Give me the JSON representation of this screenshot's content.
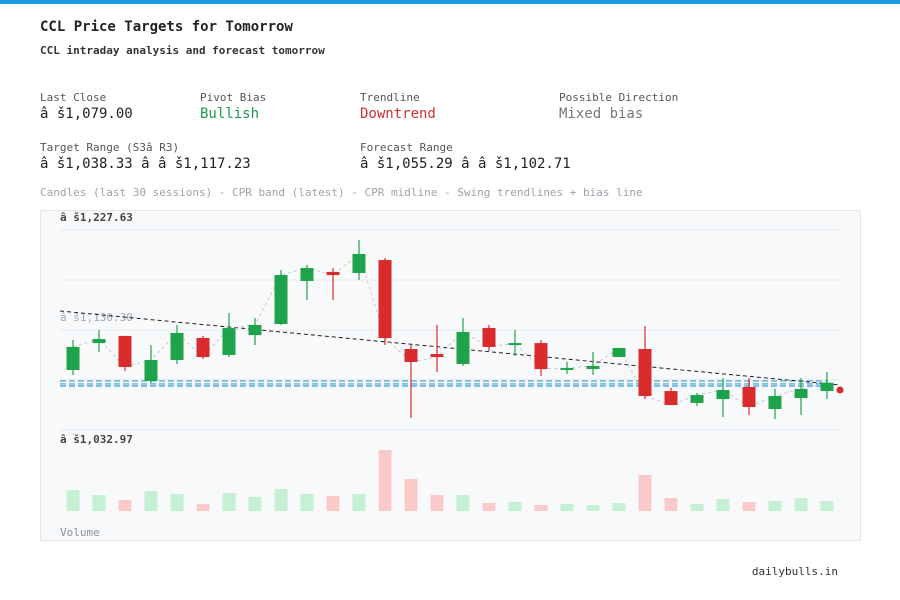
{
  "header": {
    "title": "CCL Price Targets for Tomorrow",
    "subtitle": "CCL intraday analysis and forecast tomorrow"
  },
  "stats": [
    {
      "label": "Last Close",
      "value": "â š1,079.00",
      "color": "#222222"
    },
    {
      "label": "Pivot Bias",
      "value": "Bullish",
      "color": "#1a9a4a"
    },
    {
      "label": "Trendline",
      "value": "Downtrend",
      "color": "#d03030"
    },
    {
      "label": "Possible Direction",
      "value": "Mixed bias",
      "color": "#777777"
    },
    {
      "label": "Target Range (S3â  R3)",
      "value": "â š1,038.33 â   â š1,117.23",
      "color": "#222222"
    },
    {
      "label": "Forecast Range",
      "value": "â š1,055.29 â   â š1,102.71",
      "color": "#222222"
    }
  ],
  "caption": "Candles (last 30 sessions) - CPR band (latest) - CPR midline - Swing trendlines + bias line",
  "footer": "dailybulls.in",
  "chart_data": {
    "type": "candlestick",
    "open": [
      1091.4,
      1117.6,
      1124.5,
      1080.7,
      1101.1,
      1122.5,
      1106.0,
      1125.4,
      1136.1,
      1178.0,
      1186.8,
      1185.8,
      1198.4,
      1111.8,
      1106.9,
      1097.2,
      1132.2,
      1115.7,
      1117.6,
      1091.4,
      1092.3,
      1104.0,
      1111.8,
      1070.9,
      1059.3,
      1063.1,
      1074.8,
      1053.4,
      1064.1,
      1070.9
    ],
    "high": [
      1120.6,
      1130.3,
      1124.5,
      1115.7,
      1135.2,
      1124.5,
      1146.9,
      1142.0,
      1188.7,
      1193.6,
      1190.6,
      1217.9,
      1200.4,
      1115.7,
      1135.2,
      1142.0,
      1135.2,
      1130.3,
      1120.6,
      1099.2,
      1108.9,
      1112.8,
      1134.2,
      1073.9,
      1069.0,
      1083.6,
      1083.6,
      1072.9,
      1083.6,
      1089.4
    ],
    "low": [
      1086.5,
      1108.9,
      1090.4,
      1078.7,
      1097.2,
      1102.1,
      1104.0,
      1115.7,
      1135.2,
      1159.5,
      1159.5,
      1179.0,
      1115.7,
      1044.7,
      1089.4,
      1095.3,
      1109.9,
      1105.0,
      1085.5,
      1087.5,
      1086.5,
      1104.0,
      1063.1,
      1057.3,
      1056.3,
      1045.6,
      1047.6,
      1043.7,
      1047.6,
      1063.1
    ],
    "close": [
      1113.8,
      1121.5,
      1094.3,
      1101.1,
      1127.4,
      1104.0,
      1132.2,
      1135.2,
      1183.8,
      1190.6,
      1183.8,
      1204.3,
      1122.5,
      1099.2,
      1104.0,
      1128.4,
      1113.8,
      1117.6,
      1092.3,
      1093.3,
      1095.3,
      1112.8,
      1066.1,
      1057.3,
      1067.0,
      1071.9,
      1055.4,
      1066.1,
      1072.9,
      1079.0
    ],
    "volume": [
      21,
      16,
      11,
      20,
      17,
      7,
      18,
      14,
      22,
      17,
      15,
      17,
      61,
      32,
      16,
      16,
      8,
      9,
      6,
      7,
      6,
      8,
      36,
      13,
      7,
      12,
      9,
      10,
      13,
      10
    ],
    "volume_label": "Volume",
    "ylim": [
      1032.97,
      1227.63
    ],
    "yticks": [
      {
        "value": 1227.63,
        "label": "â š1,227.63"
      },
      {
        "value": 1130.3,
        "label": "â š1,130.30"
      },
      {
        "value": 1032.97,
        "label": "â š1,032.97"
      }
    ],
    "grid": true,
    "up_color": "#1fa34a",
    "down_color": "#d92b2b",
    "up_volume_color": "#c5f0d3",
    "down_volume_color": "#fcc9c9",
    "cpr": {
      "tc": 1080.7,
      "pivot": 1077.8,
      "bc": 1075.8,
      "color": "#3a9fd6"
    },
    "trendline": {
      "start": 1148.8,
      "end": 1076.8,
      "color": "#222222"
    },
    "bias_point": {
      "value": 1071.9,
      "color": "#d92b2b"
    }
  }
}
